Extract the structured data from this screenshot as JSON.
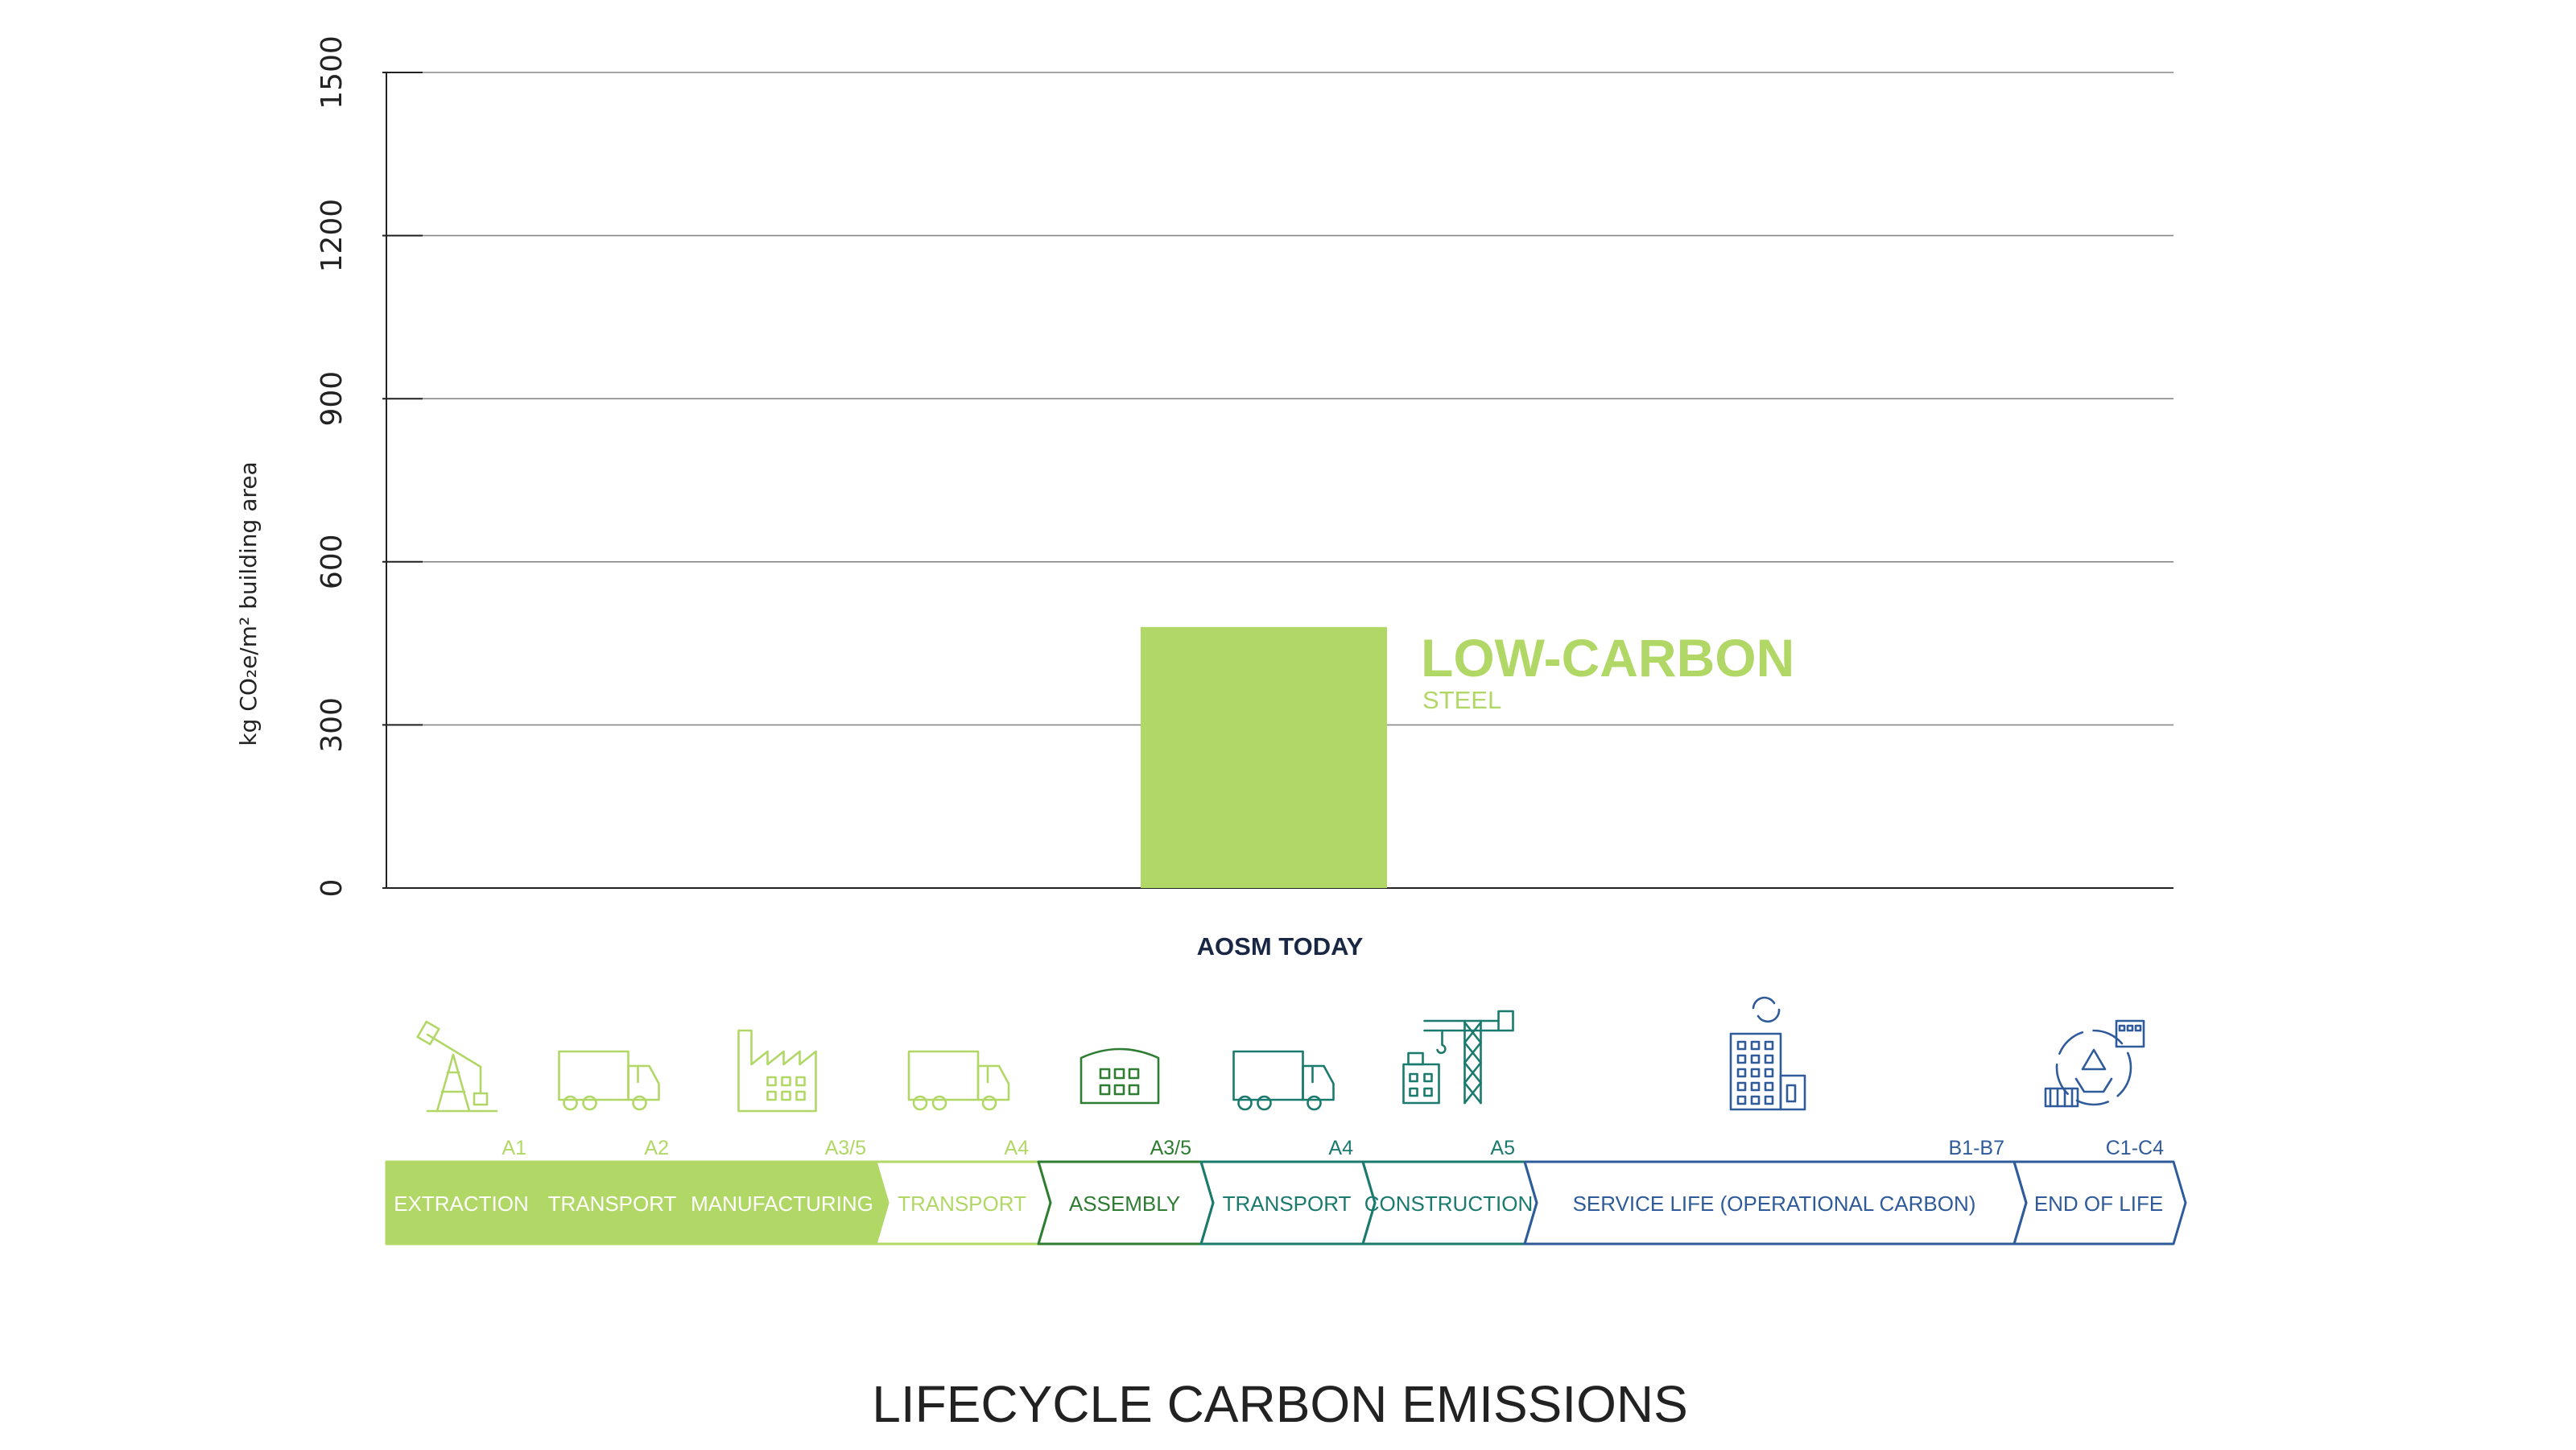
{
  "chart_data": {
    "type": "bar",
    "title": "LIFECYCLE CARBON EMISSIONS",
    "ylabel": "kg CO₂e/m² building area",
    "xlabel": "",
    "yticks": [
      0,
      300,
      600,
      900,
      1200,
      1500
    ],
    "ylim": [
      0,
      1500
    ],
    "grid": true,
    "categories": [
      "AOSM TODAY"
    ],
    "series": [
      {
        "name": "LOW-CARBON",
        "sublabel": "STEEL",
        "values": [
          480
        ]
      }
    ]
  },
  "colors": {
    "bar": "#b1d866",
    "dark_green": "#2e7d32",
    "teal": "#1b7a6e",
    "blue": "#2f5b9a",
    "label_dark": "#1a2744"
  },
  "stages": [
    {
      "label": "EXTRACTION",
      "code": "A1",
      "icon": "oil-pump-icon"
    },
    {
      "label": "TRANSPORT",
      "code": "A2",
      "icon": "truck-icon"
    },
    {
      "label": "MANUFACTURING",
      "code": "A3/5",
      "icon": "factory-icon"
    },
    {
      "label": "TRANSPORT",
      "code": "A4",
      "icon": "truck-icon"
    },
    {
      "label": "ASSEMBLY",
      "code": "A3/5",
      "icon": "assembly-building-icon"
    },
    {
      "label": "TRANSPORT",
      "code": "A4",
      "icon": "truck-icon"
    },
    {
      "label": "CONSTRUCTION",
      "code": "A5",
      "icon": "crane-icon"
    },
    {
      "label": "SERVICE LIFE (OPERATIONAL CARBON)",
      "code": "B1-B7",
      "icon": "office-building-icon"
    },
    {
      "label": "END OF LIFE",
      "code": "C1-C4",
      "icon": "recycle-icon"
    }
  ]
}
